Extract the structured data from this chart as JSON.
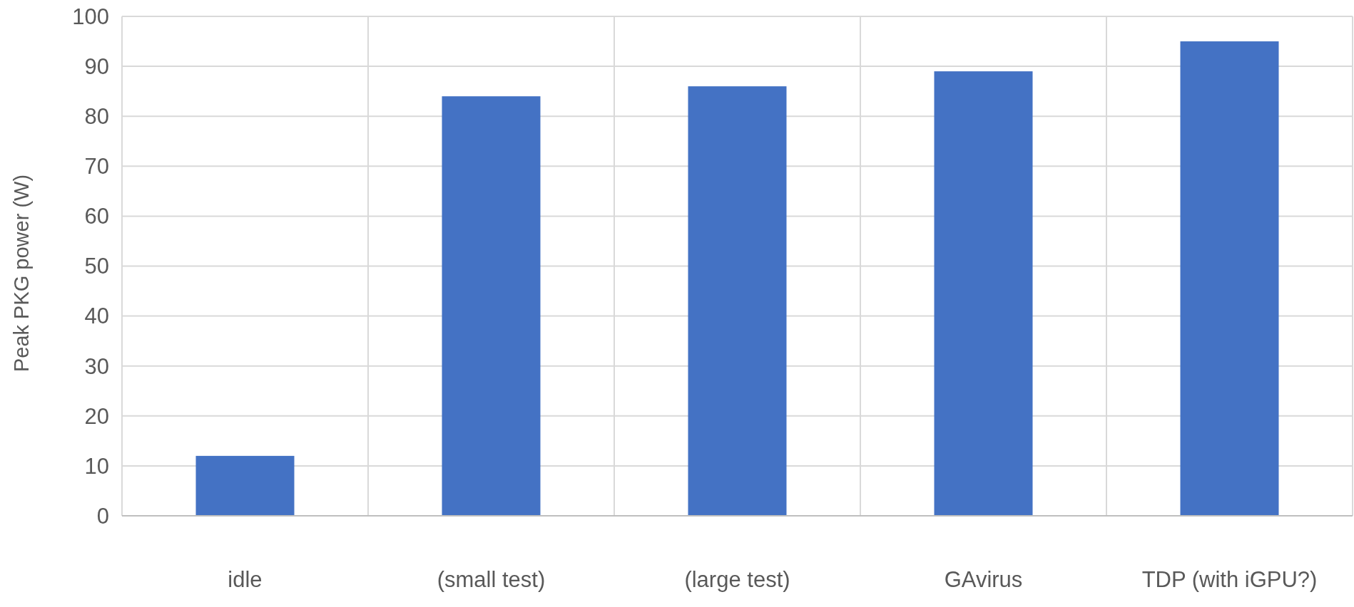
{
  "chart_data": {
    "type": "bar",
    "categories": [
      "idle",
      "(small test)",
      "(large test)",
      "GAvirus",
      "TDP (with iGPU?)"
    ],
    "values": [
      12,
      84,
      86,
      89,
      95
    ],
    "color": "#4472c4",
    "ylabel": "Peak PKG power (W)",
    "ylim": [
      0,
      100
    ],
    "yticks": [
      0,
      10,
      20,
      30,
      40,
      50,
      60,
      70,
      80,
      90,
      100
    ],
    "grid": true
  }
}
